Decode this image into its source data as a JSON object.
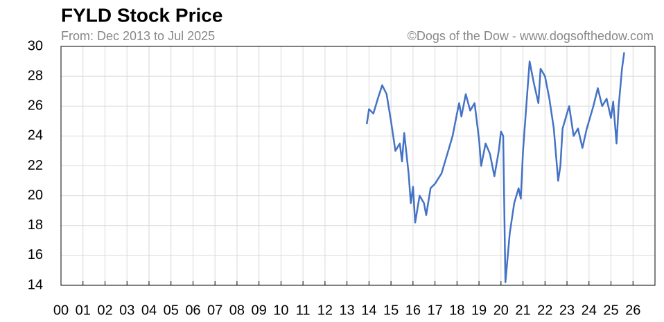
{
  "chart_data": {
    "type": "line",
    "title": "FYLD Stock Price",
    "subtitle": "From: Dec 2013 to Jul 2025",
    "source": "©Dogs of the Dow - www.dogsofthedow.com",
    "x": [
      2013.9,
      2014.0,
      2014.2,
      2014.4,
      2014.6,
      2014.8,
      2015.0,
      2015.2,
      2015.4,
      2015.5,
      2015.6,
      2015.8,
      2015.9,
      2016.0,
      2016.1,
      2016.3,
      2016.5,
      2016.6,
      2016.8,
      2017.0,
      2017.3,
      2017.5,
      2017.8,
      2018.0,
      2018.1,
      2018.2,
      2018.4,
      2018.6,
      2018.8,
      2019.0,
      2019.1,
      2019.3,
      2019.5,
      2019.7,
      2019.9,
      2020.0,
      2020.1,
      2020.2,
      2020.4,
      2020.6,
      2020.8,
      2020.9,
      2021.0,
      2021.2,
      2021.3,
      2021.5,
      2021.7,
      2021.8,
      2022.0,
      2022.2,
      2022.4,
      2022.6,
      2022.7,
      2022.8,
      2023.0,
      2023.1,
      2023.3,
      2023.5,
      2023.7,
      2023.9,
      2024.0,
      2024.2,
      2024.4,
      2024.6,
      2024.8,
      2025.0,
      2025.1,
      2025.25,
      2025.35,
      2025.5,
      2025.6
    ],
    "series": [
      {
        "name": "FYLD",
        "color": "#4472c4",
        "values": [
          24.8,
          25.8,
          25.5,
          26.5,
          27.4,
          26.8,
          25.0,
          23.0,
          23.5,
          22.3,
          24.2,
          21.5,
          19.5,
          20.6,
          18.2,
          20.0,
          19.5,
          18.7,
          20.5,
          20.8,
          21.5,
          22.5,
          24.0,
          25.5,
          26.2,
          25.3,
          26.8,
          25.7,
          26.2,
          23.8,
          22.0,
          23.5,
          22.8,
          21.3,
          23.0,
          24.3,
          24.0,
          14.2,
          17.5,
          19.5,
          20.5,
          19.8,
          23.0,
          27.0,
          29.0,
          27.5,
          26.2,
          28.5,
          28.0,
          26.5,
          24.5,
          21.0,
          22.0,
          24.5,
          25.5,
          26.0,
          24.0,
          24.5,
          23.2,
          24.5,
          25.0,
          26.0,
          27.2,
          26.0,
          26.5,
          25.2,
          26.3,
          23.5,
          26.0,
          28.5,
          29.6
        ]
      }
    ],
    "xlim": [
      2000,
      2027
    ],
    "xticks": [
      {
        "value": 2000,
        "label": "00"
      },
      {
        "value": 2001,
        "label": "01"
      },
      {
        "value": 2002,
        "label": "02"
      },
      {
        "value": 2003,
        "label": "03"
      },
      {
        "value": 2004,
        "label": "04"
      },
      {
        "value": 2005,
        "label": "05"
      },
      {
        "value": 2006,
        "label": "06"
      },
      {
        "value": 2007,
        "label": "07"
      },
      {
        "value": 2008,
        "label": "08"
      },
      {
        "value": 2009,
        "label": "09"
      },
      {
        "value": 2010,
        "label": "10"
      },
      {
        "value": 2011,
        "label": "11"
      },
      {
        "value": 2012,
        "label": "12"
      },
      {
        "value": 2013,
        "label": "13"
      },
      {
        "value": 2014,
        "label": "14"
      },
      {
        "value": 2015,
        "label": "15"
      },
      {
        "value": 2016,
        "label": "16"
      },
      {
        "value": 2017,
        "label": "17"
      },
      {
        "value": 2018,
        "label": "18"
      },
      {
        "value": 2019,
        "label": "19"
      },
      {
        "value": 2020,
        "label": "20"
      },
      {
        "value": 2021,
        "label": "21"
      },
      {
        "value": 2022,
        "label": "22"
      },
      {
        "value": 2023,
        "label": "23"
      },
      {
        "value": 2024,
        "label": "24"
      },
      {
        "value": 2025,
        "label": "25"
      },
      {
        "value": 2026,
        "label": "26"
      }
    ],
    "ylim": [
      14,
      30
    ],
    "yticks": [
      14,
      16,
      18,
      20,
      22,
      24,
      26,
      28,
      30
    ],
    "grid": true
  }
}
